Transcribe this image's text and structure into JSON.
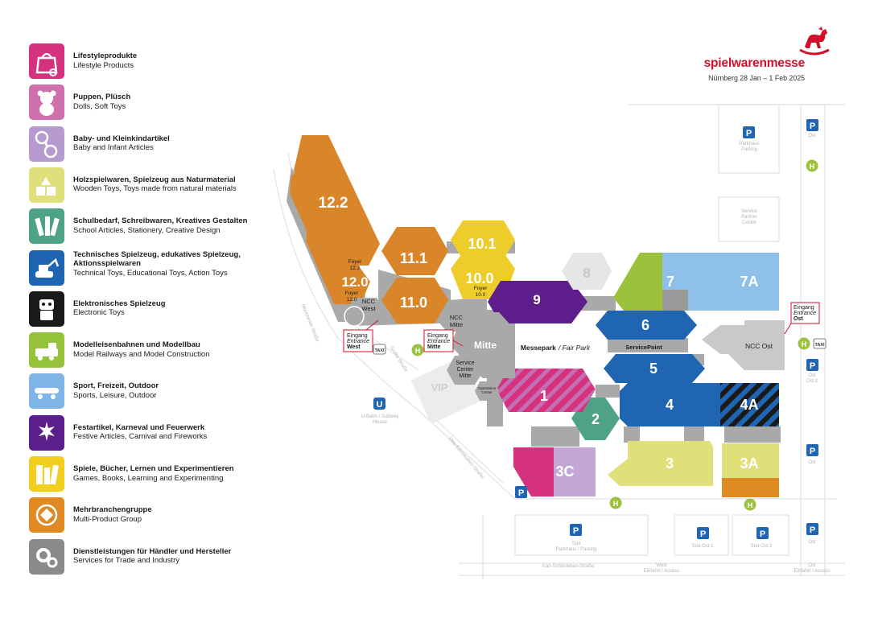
{
  "legend": [
    {
      "de": "Lifestyleprodukte",
      "en": "Lifestyle Products",
      "color": "#d6317e",
      "icon": "shopping-bag-icon"
    },
    {
      "de": "Puppen, Plüsch",
      "en": "Dolls, Soft Toys",
      "color": "#d06fae",
      "icon": "teddy-bear-icon"
    },
    {
      "de": "Baby- und Kleinkindartikel",
      "en": "Baby and Infant Articles",
      "color": "#b79ad0",
      "icon": "rattle-icon"
    },
    {
      "de": "Holzspielwaren, Spielzeug aus Naturmaterial",
      "en": "Wooden Toys, Toys made from natural materials",
      "color": "#dfe07b",
      "icon": "wooden-blocks-icon"
    },
    {
      "de": "Schulbedarf, Schreibwaren, Kreatives Gestalten",
      "en": "School Articles, Stationery, Creative Design",
      "color": "#4fa385",
      "icon": "pencils-icon"
    },
    {
      "de": "Technisches Spielzeug, edukatives Spielzeug, Aktionsspielwaren",
      "en": "Technical Toys, Educational Toys, Action Toys",
      "color": "#1e64b0",
      "icon": "excavator-icon"
    },
    {
      "de": "Elektronisches Spielzeug",
      "en": "Electronic Toys",
      "color": "#1a1a1a",
      "icon": "robot-icon"
    },
    {
      "de": "Modelleisenbahnen und Modellbau",
      "en": "Model Railways and Model Construction",
      "color": "#94c23a",
      "icon": "model-train-icon"
    },
    {
      "de": "Sport, Freizeit, Outdoor",
      "en": "Sports, Leisure, Outdoor",
      "color": "#7fb5e6",
      "icon": "skateboard-icon"
    },
    {
      "de": "Festartikel, Karneval und Feuerwerk",
      "en": "Festive Articles, Carnival and Fireworks",
      "color": "#5b1e8a",
      "icon": "fireworks-icon"
    },
    {
      "de": "Spiele, Bücher, Lernen und Experimentieren",
      "en": "Games, Books, Learning and Experimenting",
      "color": "#f0cf1e",
      "icon": "books-icon"
    },
    {
      "de": "Mehrbranchengruppe",
      "en": "Multi-Product Group",
      "color": "#df8a23",
      "icon": "multi-product-icon"
    },
    {
      "de": "Dienstleistungen für Händler und Hersteller",
      "en": "Services for Trade and Industry",
      "color": "#8a8a8a",
      "icon": "gears-icon"
    }
  ],
  "logo": {
    "brand": "spielwarenmesse",
    "dates": "Nürnberg 28 Jan – 1 Feb 2025",
    "color": "#d0102a"
  },
  "halls": {
    "h12_2": "12.2",
    "h12_0": "12.0",
    "h11_1": "11.1",
    "h11_0": "11.0",
    "h10_1": "10.1",
    "h10_0": "10.0",
    "h9": "9",
    "h8": "8",
    "h7": "7",
    "h7a": "7A",
    "h6": "6",
    "h5": "5",
    "h4": "4",
    "h4a": "4A",
    "h3": "3",
    "h3a": "3A",
    "h3c": "3C",
    "h2": "2",
    "h1": "1"
  },
  "labels": {
    "foyer_12_2": [
      "Foyer",
      "12.2"
    ],
    "foyer_12_0": [
      "Foyer",
      "12.0"
    ],
    "foyer_10_0": [
      "Foyer",
      "10.0"
    ],
    "ncc_west": [
      "NCC",
      "West"
    ],
    "ncc_mitte": [
      "NCC",
      "Mitte"
    ],
    "mitte": "Mitte",
    "service_center": [
      "Service",
      "Center",
      "Mitte"
    ],
    "operations_center": [
      "Operations",
      "Center"
    ],
    "vip": "VIP",
    "messepark": "Messepark",
    "fair_park": "/ Fair Park",
    "servicepoint": "ServicePoint",
    "ncc_ost": "NCC Ost",
    "parkhaus": [
      "Parkhaus",
      "Parking"
    ],
    "service_partner": [
      "Service",
      "Partner",
      "Center"
    ],
    "ost": "Ost",
    "ost2": [
      "Ost",
      "Ost 2"
    ],
    "ubahn": [
      "U-Bahn / Subway",
      "Messe"
    ],
    "muenchener": "Münchener Straße",
    "grosse": "Große Straße",
    "ostendorfer": "Otto-Bärnreuther-Straße",
    "sued_parkhaus": [
      "Süd",
      "Parkhaus / Parking"
    ],
    "sued_ost1": "Süd-Ost 1",
    "sued_ost2": "Süd-Ost 2",
    "karl": "Karl-Schönleben-Straße",
    "west_einfahrt": [
      "West",
      "Einfahrt / Access"
    ],
    "ost_einfahrt": [
      "Ost",
      "Einfahrt / Access"
    ]
  },
  "entrances": {
    "west": {
      "de": "Eingang",
      "en": "Entrance",
      "name": "West"
    },
    "mitte": {
      "de": "Eingang",
      "en": "Entrance",
      "name": "Mitte"
    },
    "ost": {
      "de": "Eingang",
      "en": "Entrance",
      "name": "Ost"
    }
  },
  "symbols": {
    "parking": "P",
    "bus": "H",
    "subway": "U",
    "taxi": "TAXI"
  },
  "colors": {
    "orange": "#d9852a",
    "yellow": "#eecd2b",
    "purple": "#5d1e8c",
    "lightgray": "#e6e6e6",
    "green": "#9cc13c",
    "lightblue": "#8ec0ea",
    "blue": "#1f65b2",
    "teal": "#4ea384",
    "pink": "#d5317e",
    "lavender": "#c3a7d6",
    "khaki": "#e0df7a",
    "gray": "#a9a9a9",
    "darkgray": "#9a9a9a",
    "red": "#d0102a"
  }
}
